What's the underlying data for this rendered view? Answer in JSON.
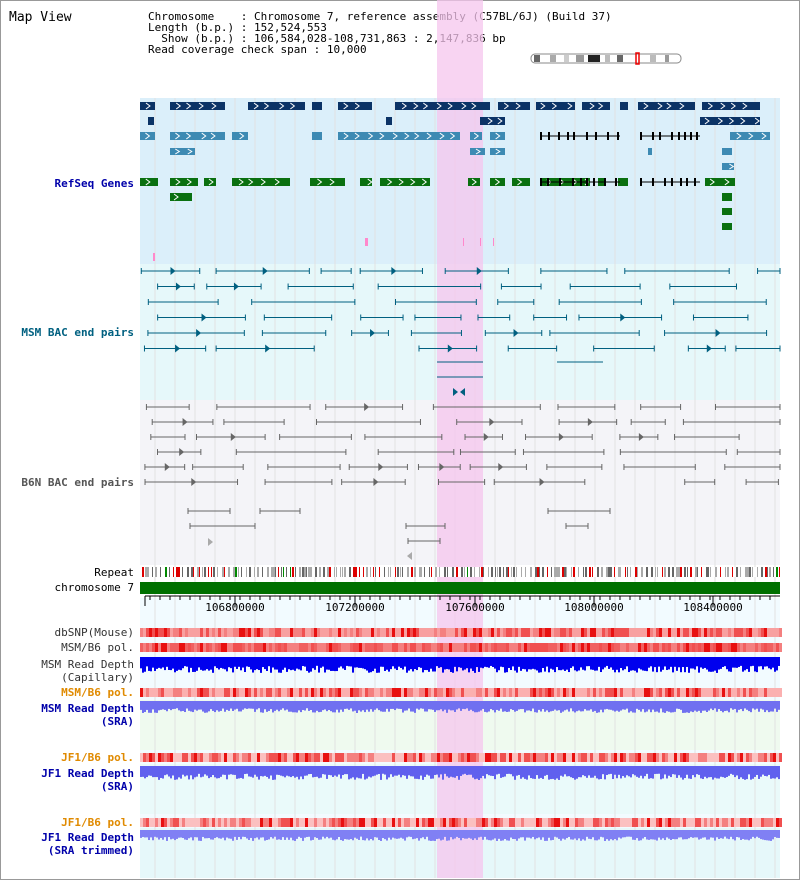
{
  "title": "Map View",
  "info": {
    "chromosome_label": "Chromosome",
    "chromosome_value": "Chromosome 7, reference assembly (C57BL/6J) (Build 37)",
    "length_label": "Length (b.p.)",
    "length_value": "152,524,553",
    "show_label": "Show (b.p.)",
    "show_value": "106,584,028-108,731,863 : 2,147,836 bp",
    "coverage_label": "Read coverage check span",
    "coverage_value": "10,000"
  },
  "tracks": {
    "refseq": "RefSeq Genes",
    "msm_bac": "MSM BAC end pairs",
    "b6n_bac": "B6N BAC end pairs",
    "repeat": "Repeat",
    "chromosome": "chromosome 7",
    "dbsnp": "dbSNP(Mouse)",
    "msm_b6_pol_1": "MSM/B6 pol.",
    "msm_read_depth_cap": "MSM Read Depth\n(Capillary)",
    "msm_b6_pol_2": "MSM/B6 pol.",
    "msm_read_depth_sra": "MSM Read Depth\n(SRA)",
    "jf1_b6_pol_1": "JF1/B6 pol.",
    "jf1_read_depth_sra": "JF1 Read Depth\n(SRA)",
    "jf1_b6_pol_2": "JF1/B6 pol.",
    "jf1_read_depth_trim": "JF1 Read Depth\n(SRA trimmed)"
  },
  "ruler": {
    "ticks": [
      "106800000",
      "107200000",
      "107600000",
      "108000000",
      "108400000"
    ]
  },
  "colors": {
    "refseq_dark": "#0b3366",
    "refseq_mid": "#3d8ab3",
    "refseq_green": "#0a7010",
    "highlight": "#f6c6ee",
    "msm_line": "#006080",
    "b6n_line": "#666666",
    "depth_blue": "#0000ee",
    "depth_light": "#6a6af0"
  }
}
